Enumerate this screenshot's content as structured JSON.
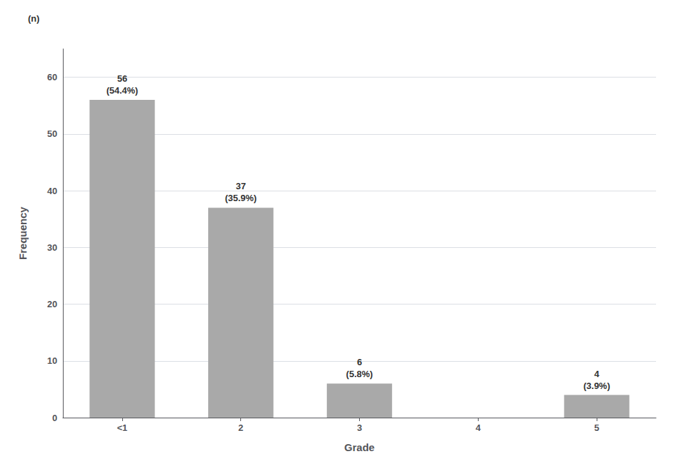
{
  "chart_data": {
    "type": "bar",
    "xlabel": "Grade",
    "ylabel": "Frequency",
    "categories": [
      "<1",
      "2",
      "3",
      "4",
      "5"
    ],
    "values": [
      56,
      37,
      6,
      0,
      4
    ],
    "data_labels": true,
    "value_labels": [
      "56\n(54.4%)",
      "37\n(35.9%)",
      "6\n(5.8%)",
      null,
      "4\n(3.9%)"
    ],
    "color": "#a9a9a9",
    "ylim": [
      0,
      65
    ],
    "yticks": [
      0,
      10,
      20,
      30,
      40,
      50,
      60
    ],
    "grid": true,
    "annotations": [
      "(n)"
    ]
  }
}
